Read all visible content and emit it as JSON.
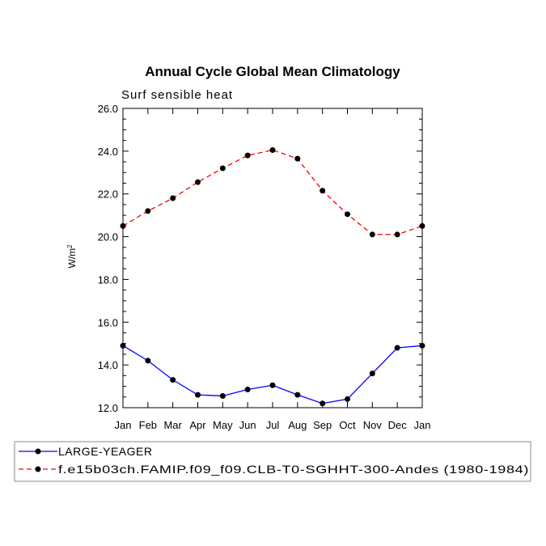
{
  "chart_data": {
    "type": "line",
    "title": "Annual Cycle Global Mean Climatology",
    "subtitle": "Surf sensible heat",
    "xlabel": "",
    "ylabel": "W/m",
    "ylabel_superscript": "2",
    "categories": [
      "Jan",
      "Feb",
      "Mar",
      "Apr",
      "May",
      "Jun",
      "Jul",
      "Aug",
      "Sep",
      "Oct",
      "Nov",
      "Dec",
      "Jan"
    ],
    "ylim": [
      12.0,
      26.0
    ],
    "yticks": [
      "12.0",
      "14.0",
      "16.0",
      "18.0",
      "20.0",
      "22.0",
      "24.0",
      "26.0"
    ],
    "grid": false,
    "legend_position": "bottom",
    "series": [
      {
        "name": "LARGE-YEAGER",
        "color": "#0000ff",
        "dash": "solid",
        "values": [
          14.9,
          14.2,
          13.3,
          12.6,
          12.55,
          12.85,
          13.05,
          12.6,
          12.2,
          12.4,
          13.6,
          14.8,
          14.9
        ]
      },
      {
        "name": "f.e15b03ch.FAMIP.f09_f09.CLB-T0-SGHHT-300-Andes (1980-1984)",
        "color": "#ff0000",
        "dash": "dashed",
        "values": [
          20.5,
          21.2,
          21.8,
          22.55,
          23.2,
          23.8,
          24.05,
          23.65,
          22.15,
          21.05,
          20.1,
          20.1,
          20.5
        ]
      }
    ]
  }
}
